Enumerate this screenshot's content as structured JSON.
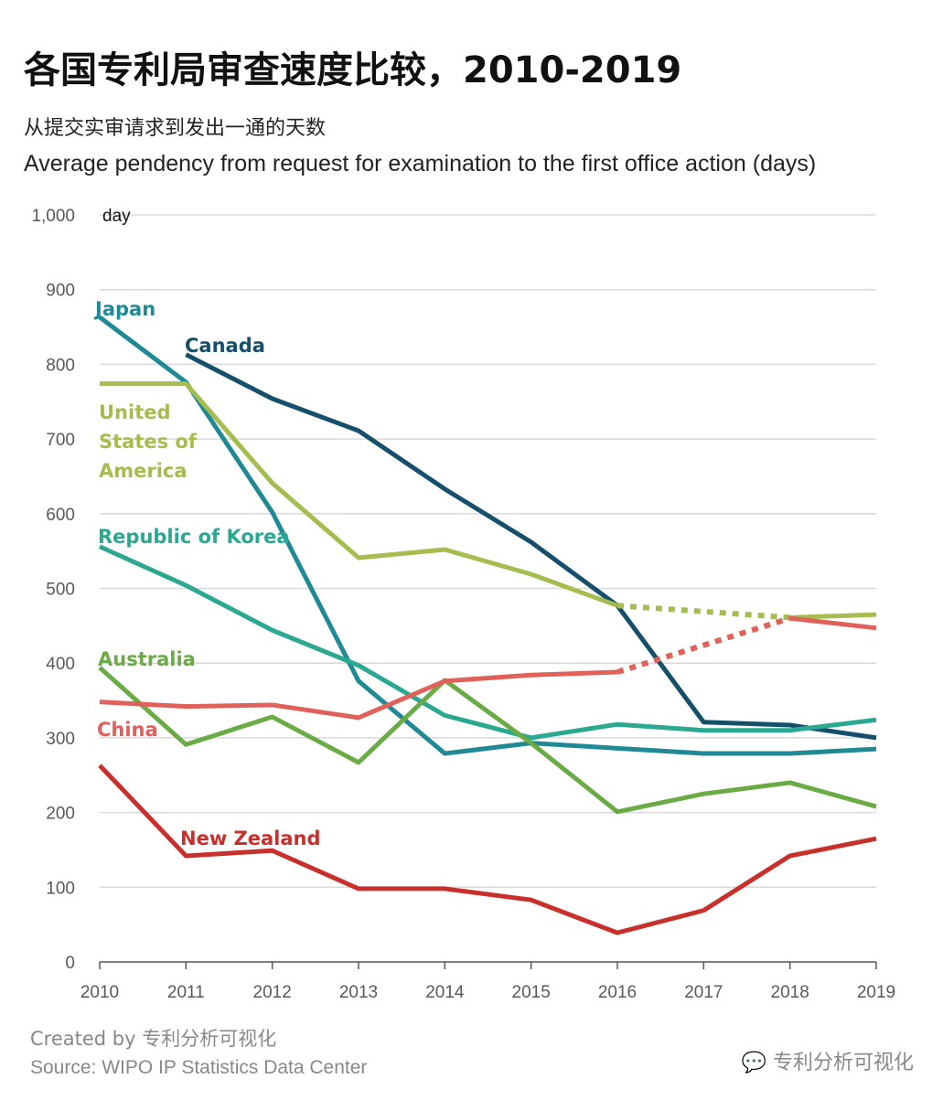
{
  "header": {
    "title": "各国专利局审查速度比较，2010-2019",
    "subtitle_cn": "从提交实审请求到发出一通的天数",
    "subtitle_en": "Average pendency from request for examination to the first office action (days)"
  },
  "footer": {
    "credit": "Created by 专利分析可视化",
    "source": "Source: WIPO IP Statistics Data Center",
    "watermark": "专利分析可视化"
  },
  "chart_data": {
    "type": "line",
    "title": "各国专利局审查速度比较，2010-2019",
    "ylabel": "day",
    "ylim": [
      0,
      1000
    ],
    "yticks": [
      "0",
      "100",
      "200",
      "300",
      "400",
      "500",
      "600",
      "700",
      "800",
      "900",
      "1,000"
    ],
    "x": [
      "2010",
      "2011",
      "2012",
      "2013",
      "2014",
      "2015",
      "2016",
      "2017",
      "2018",
      "2019"
    ],
    "grid": true,
    "legend": "inline labels",
    "series": [
      {
        "name": "Japan",
        "color": "#1f8a96",
        "values": [
          863,
          776,
          602,
          376,
          279,
          293,
          286,
          279,
          279,
          285
        ]
      },
      {
        "name": "Canada",
        "color": "#154f6b",
        "values": [
          null,
          813,
          754,
          711,
          633,
          562,
          477,
          321,
          317,
          300
        ]
      },
      {
        "name": "United States of America",
        "color": "#a5bd4e",
        "values": [
          774,
          774,
          641,
          541,
          552,
          519,
          477,
          null,
          461,
          465
        ],
        "gap_dotted": true
      },
      {
        "name": "Republic of Korea",
        "color": "#2ba892",
        "values": [
          556,
          504,
          444,
          397,
          330,
          300,
          318,
          310,
          310,
          324
        ]
      },
      {
        "name": "Australia",
        "color": "#6aab45",
        "values": [
          394,
          291,
          328,
          267,
          377,
          293,
          201,
          225,
          240,
          208
        ]
      },
      {
        "name": "China",
        "color": "#e0605a",
        "values": [
          348,
          342,
          344,
          327,
          376,
          384,
          388,
          null,
          460,
          447
        ],
        "gap_dotted": true
      },
      {
        "name": "New Zealand",
        "color": "#c9302c",
        "values": [
          263,
          142,
          149,
          98,
          98,
          83,
          39,
          69,
          142,
          165
        ]
      }
    ]
  }
}
